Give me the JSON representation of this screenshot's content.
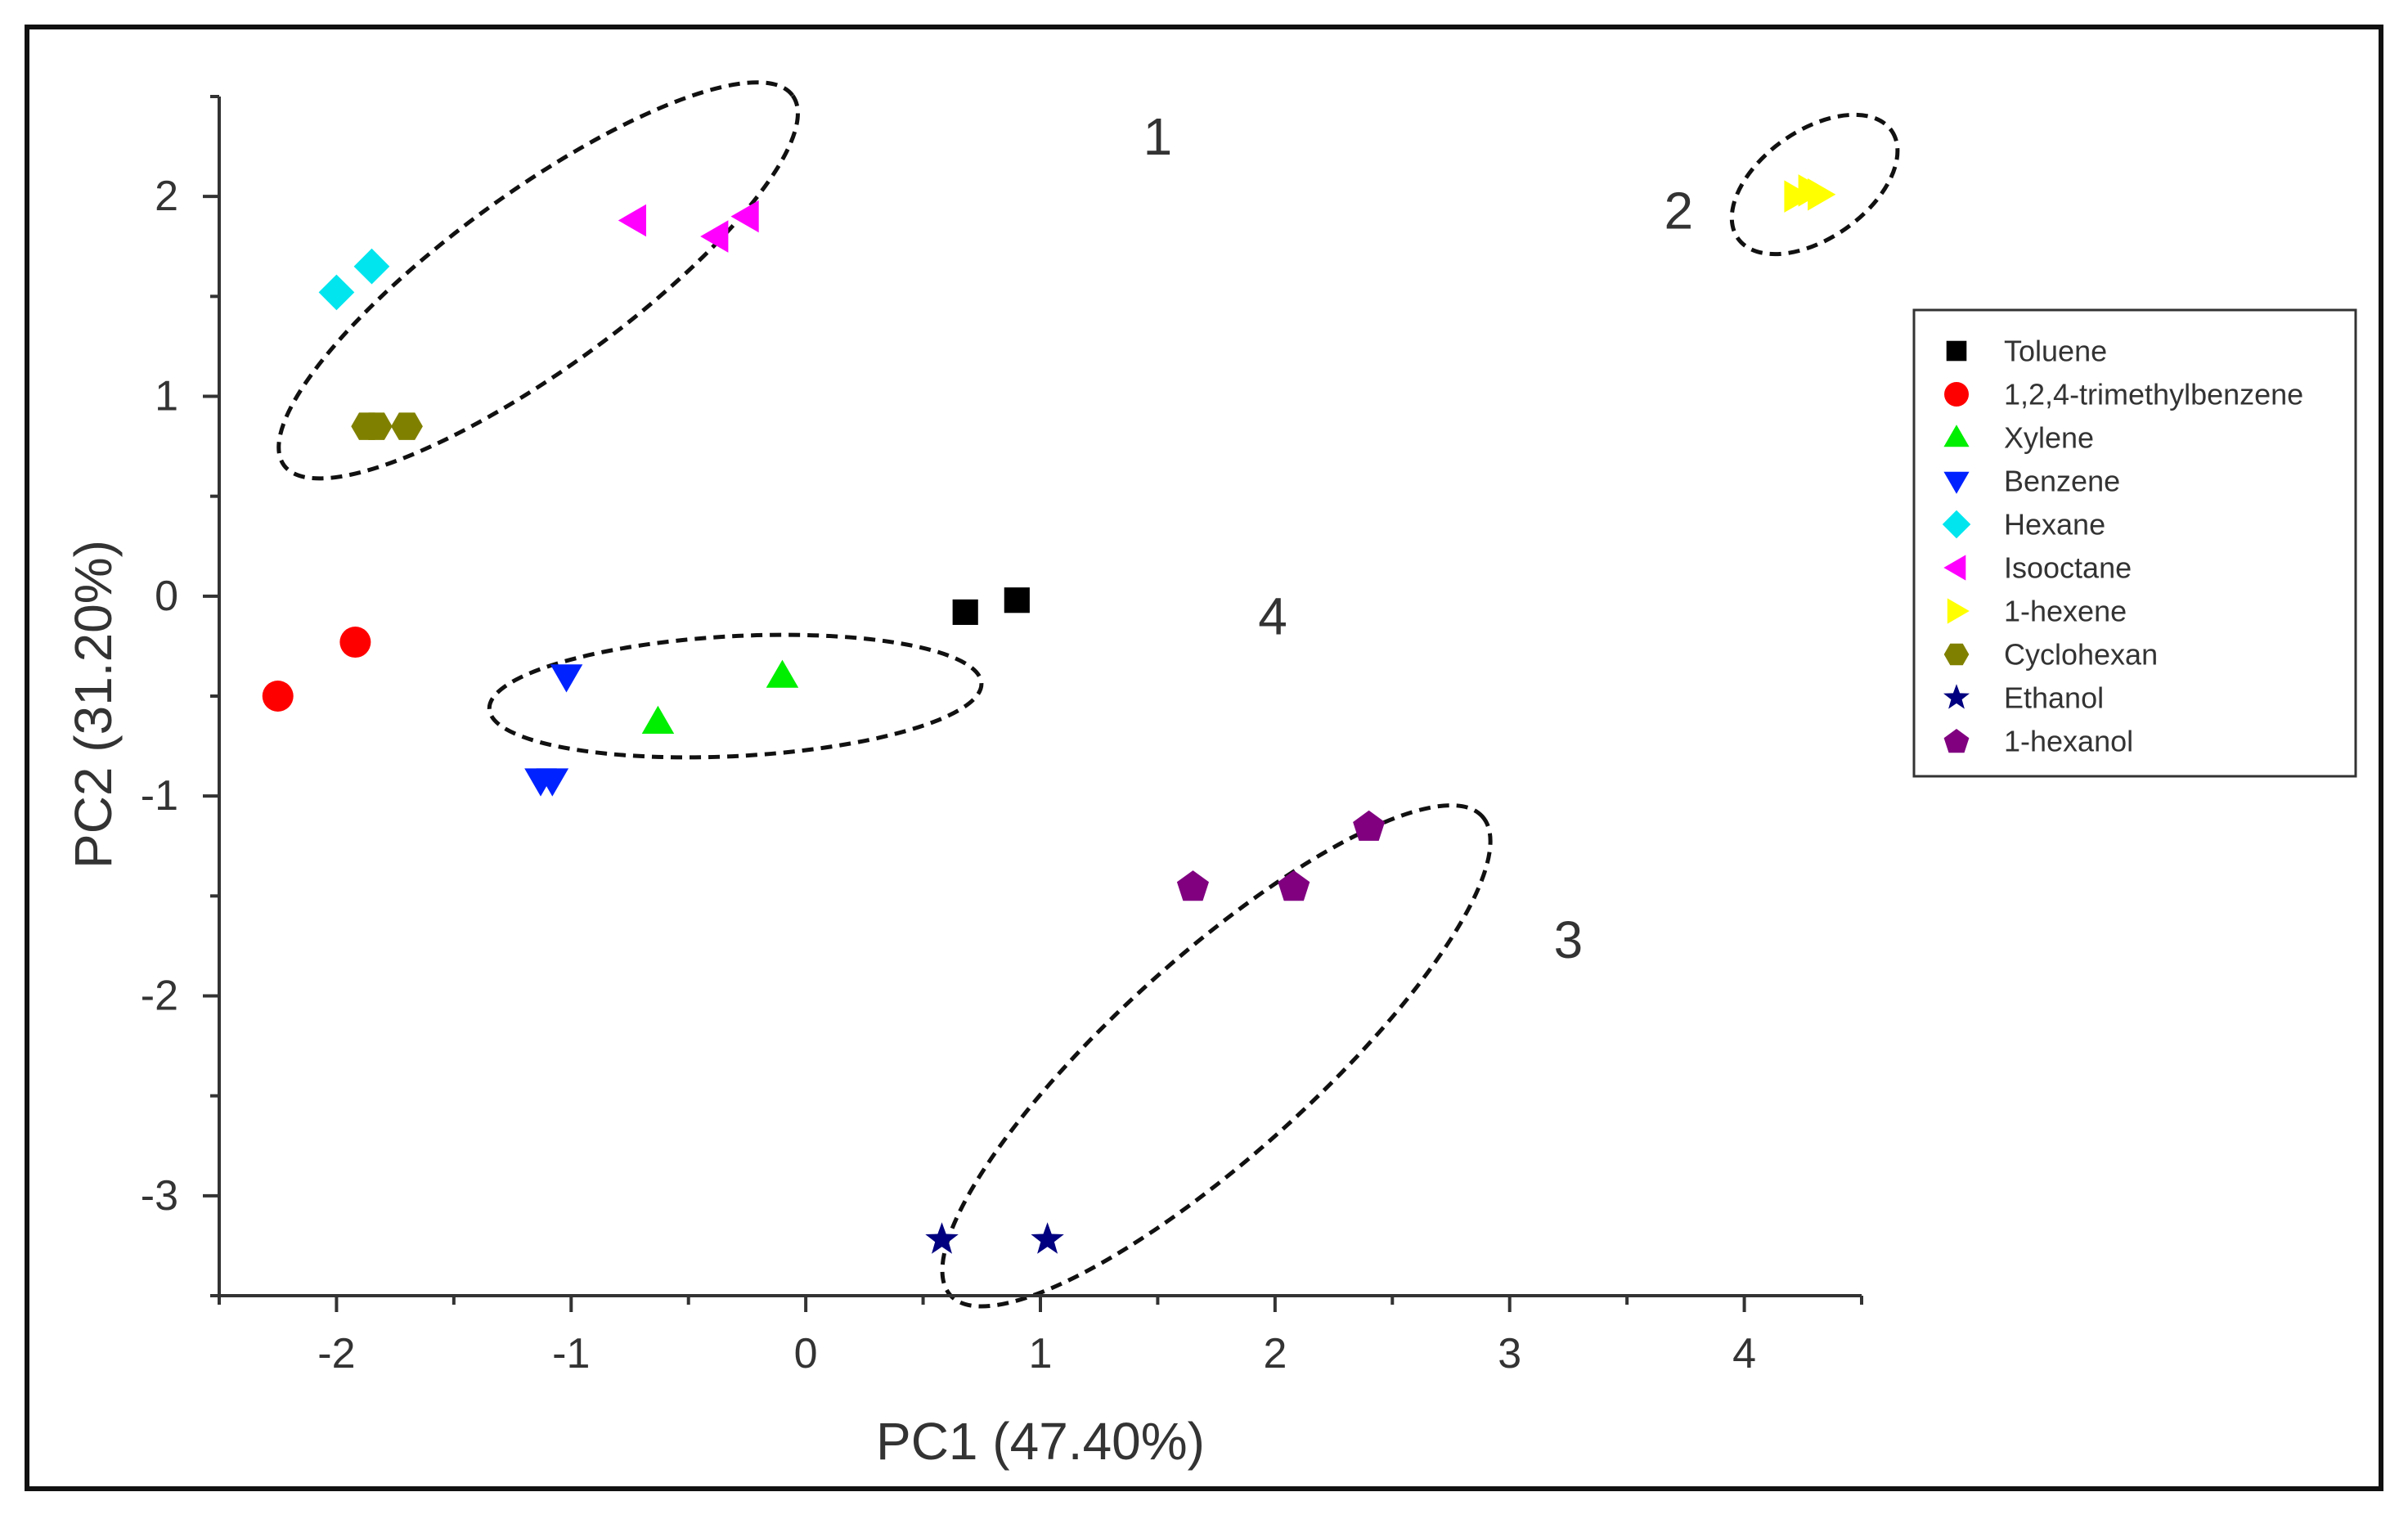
{
  "chart_data": {
    "type": "scatter",
    "title": "",
    "xlabel": "PC1 (47.40%)",
    "ylabel": "PC2 (31.20%)",
    "xlim": [
      -2.5,
      4.5
    ],
    "ylim": [
      -3.5,
      2.5
    ],
    "xticks": [
      -2,
      -1,
      0,
      1,
      2,
      3,
      4
    ],
    "yticks": [
      -3,
      -2,
      -1,
      0,
      1,
      2
    ],
    "xtick_labels": [
      "-2",
      "-1",
      "0",
      "1",
      "2",
      "3",
      "4"
    ],
    "ytick_labels": [
      "-3",
      "-2",
      "-1",
      "0",
      "1",
      "2"
    ],
    "grid": false,
    "legend_position": "right",
    "series": [
      {
        "name": "Toluene",
        "marker": "square",
        "color": "#000000",
        "points": [
          [
            0.68,
            -0.08
          ],
          [
            0.9,
            -0.02
          ]
        ]
      },
      {
        "name": "1,2,4-trimethylbenzene",
        "marker": "circle",
        "color": "#ff0000",
        "points": [
          [
            -2.25,
            -0.5
          ],
          [
            -1.92,
            -0.23
          ]
        ]
      },
      {
        "name": "Xylene",
        "marker": "triangle-up",
        "color": "#00ee00",
        "points": [
          [
            -0.1,
            -0.4
          ],
          [
            -0.63,
            -0.63
          ]
        ]
      },
      {
        "name": "Benzene",
        "marker": "triangle-down",
        "color": "#0022ff",
        "points": [
          [
            -1.02,
            -0.4
          ],
          [
            -1.13,
            -0.92
          ],
          [
            -1.08,
            -0.92
          ]
        ]
      },
      {
        "name": "Hexane",
        "marker": "diamond",
        "color": "#00e5ee",
        "points": [
          [
            -2.0,
            1.52
          ],
          [
            -1.85,
            1.65
          ]
        ]
      },
      {
        "name": "Isooctane",
        "marker": "triangle-left",
        "color": "#ff00ff",
        "points": [
          [
            -0.73,
            1.88
          ],
          [
            -0.38,
            1.8
          ],
          [
            -0.25,
            1.9
          ]
        ]
      },
      {
        "name": "1-hexene",
        "marker": "triangle-right",
        "color": "#ffff00",
        "points": [
          [
            4.22,
            2.0
          ],
          [
            4.28,
            2.03
          ],
          [
            4.32,
            2.01
          ]
        ]
      },
      {
        "name": "Cyclohexan",
        "marker": "hexagon",
        "color": "#808000",
        "points": [
          [
            -1.87,
            0.85
          ],
          [
            -1.83,
            0.85
          ],
          [
            -1.7,
            0.85
          ]
        ]
      },
      {
        "name": "Ethanol",
        "marker": "star",
        "color": "#000080",
        "points": [
          [
            0.58,
            -3.22
          ],
          [
            1.03,
            -3.22
          ]
        ]
      },
      {
        "name": "1-hexanol",
        "marker": "pentagon",
        "color": "#800080",
        "points": [
          [
            1.65,
            -1.45
          ],
          [
            2.08,
            -1.45
          ],
          [
            2.4,
            -1.15
          ]
        ]
      }
    ],
    "clusters": [
      {
        "label": "1",
        "center": [
          -1.14,
          1.58
        ],
        "radius_x": 2.68,
        "radius_y": 0.88,
        "rotation_deg": -36
      },
      {
        "label": "2",
        "center": [
          4.3,
          2.06
        ],
        "radius_x": 0.8,
        "radius_y": 0.54,
        "rotation_deg": -35
      },
      {
        "label": "3",
        "center": [
          1.75,
          -2.3
        ],
        "radius_x": 3.05,
        "radius_y": 0.99,
        "rotation_deg": -42
      },
      {
        "label": "4",
        "center": [
          -0.3,
          -0.5
        ],
        "radius_x": 2.1,
        "radius_y": 0.6,
        "rotation_deg": -3
      }
    ]
  }
}
